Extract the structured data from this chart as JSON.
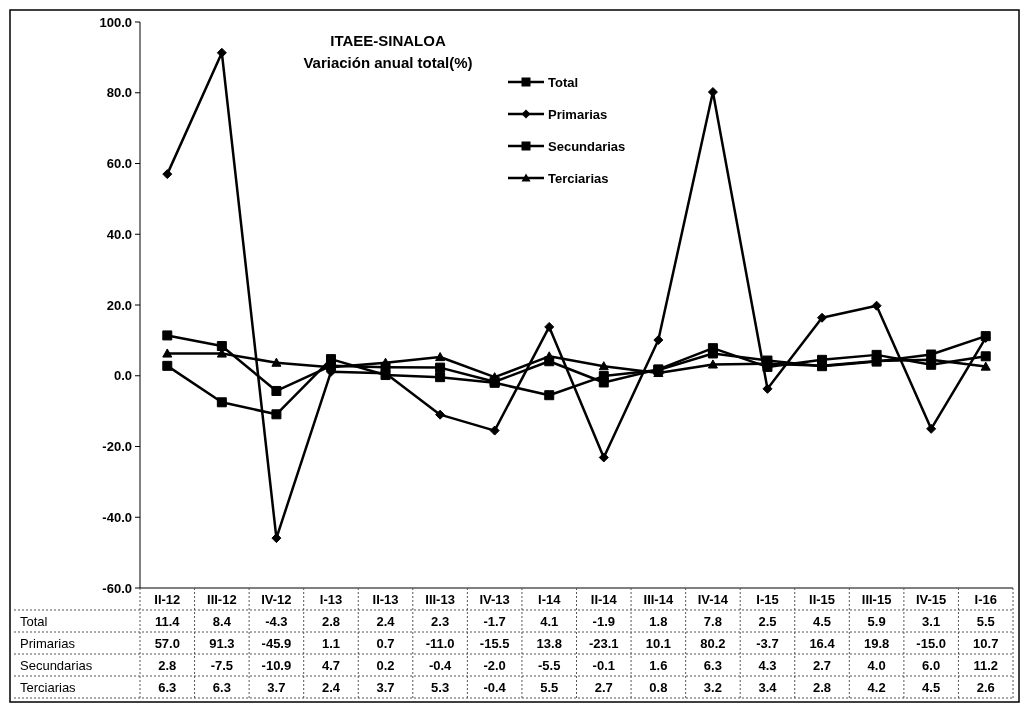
{
  "chart_data": {
    "type": "line",
    "title": "ITAEE-SINALOA",
    "subtitle": "Variación anual total(%)",
    "categories": [
      "II-12",
      "III-12",
      "IV-12",
      "I-13",
      "II-13",
      "III-13",
      "IV-13",
      "I-14",
      "II-14",
      "III-14",
      "IV-14",
      "I-15",
      "II-15",
      "III-15",
      "IV-15",
      "I-16"
    ],
    "series": [
      {
        "name": "Total",
        "color": "#000000",
        "marker": "square",
        "values": [
          11.4,
          8.4,
          -4.3,
          2.8,
          2.4,
          2.3,
          -1.7,
          4.1,
          -1.9,
          1.8,
          7.8,
          2.5,
          4.5,
          5.9,
          3.1,
          5.5
        ],
        "value_labels": [
          "11.4",
          "8.4",
          "-4.3",
          "2.8",
          "2.4",
          "2.3",
          "-1.7",
          "4.1",
          "-1.9",
          "1.8",
          "7.8",
          "2.5",
          "4.5",
          "5.9",
          "3.1",
          "5.5"
        ]
      },
      {
        "name": "Primarias",
        "color": "#000000",
        "marker": "diamond",
        "values": [
          57.0,
          91.3,
          -45.9,
          1.1,
          0.7,
          -11.0,
          -15.5,
          13.8,
          -23.1,
          10.1,
          80.2,
          -3.7,
          16.4,
          19.8,
          -15.0,
          10.7
        ],
        "value_labels": [
          "57.0",
          "91.3",
          "-45.9",
          "1.1",
          "0.7",
          "-11.0",
          "-15.5",
          "13.8",
          "-23.1",
          "10.1",
          "80.2",
          "-3.7",
          "16.4",
          "19.8",
          "-15.0",
          "10.7"
        ]
      },
      {
        "name": "Secundarias",
        "color": "#000000",
        "marker": "square",
        "values": [
          2.8,
          -7.5,
          -10.9,
          4.7,
          0.2,
          -0.4,
          -2.0,
          -5.5,
          -0.1,
          1.6,
          6.3,
          4.3,
          2.7,
          4.0,
          6.0,
          11.2
        ],
        "value_labels": [
          "2.8",
          "-7.5",
          "-10.9",
          "4.7",
          "0.2",
          "-0.4",
          "-2.0",
          "-5.5",
          "-0.1",
          "1.6",
          "6.3",
          "4.3",
          "2.7",
          "4.0",
          "6.0",
          "11.2"
        ]
      },
      {
        "name": "Terciarias",
        "color": "#000000",
        "marker": "triangle",
        "values": [
          6.3,
          6.3,
          3.7,
          2.4,
          3.7,
          5.3,
          -0.4,
          5.5,
          2.7,
          0.8,
          3.2,
          3.4,
          2.8,
          4.2,
          4.5,
          2.6
        ],
        "value_labels": [
          "6.3",
          "6.3",
          "3.7",
          "2.4",
          "3.7",
          "5.3",
          "-0.4",
          "5.5",
          "2.7",
          "0.8",
          "3.2",
          "3.4",
          "2.8",
          "4.2",
          "4.5",
          "2.6"
        ]
      }
    ],
    "ylim": [
      -60,
      100
    ],
    "yticks": [
      {
        "value": -60,
        "label": "-60.0"
      },
      {
        "value": -40,
        "label": "-40.0"
      },
      {
        "value": -20,
        "label": "-20.0"
      },
      {
        "value": 0,
        "label": "0.0"
      },
      {
        "value": 20,
        "label": "20.0"
      },
      {
        "value": 40,
        "label": "40.0"
      },
      {
        "value": 60,
        "label": "60.0"
      },
      {
        "value": 80,
        "label": "80.0"
      },
      {
        "value": 100,
        "label": "100.0"
      }
    ],
    "legend": "top",
    "line_style": "solid"
  }
}
